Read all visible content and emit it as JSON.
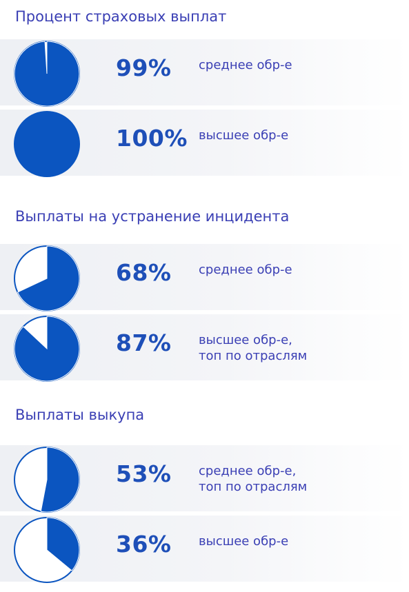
{
  "chart_data": [
    {
      "type": "pie",
      "title": "Процент страховых выплат",
      "items": [
        {
          "value": 99,
          "label": "99%",
          "desc": [
            "среднее обр-е"
          ]
        },
        {
          "value": 100,
          "label": "100%",
          "desc": [
            "высшее обр-е"
          ]
        }
      ]
    },
    {
      "type": "pie",
      "title": "Выплаты на устранение инцидента",
      "items": [
        {
          "value": 68,
          "label": "68%",
          "desc": [
            "среднее обр-е"
          ]
        },
        {
          "value": 87,
          "label": "87%",
          "desc": [
            "высшее обр-е,",
            "топ по отраслям"
          ]
        }
      ]
    },
    {
      "type": "pie",
      "title": "Выплаты выкупа",
      "items": [
        {
          "value": 53,
          "label": "53%",
          "desc": [
            "среднее обр-е,",
            "топ по отраслям"
          ]
        },
        {
          "value": 36,
          "label": "36%",
          "desc": [
            "высшее обр-е"
          ]
        }
      ]
    }
  ],
  "colors": {
    "fill": "#0b55c0",
    "empty": "#ffffff",
    "title": "#3a3fb4",
    "percent": "#1e4fb8"
  }
}
